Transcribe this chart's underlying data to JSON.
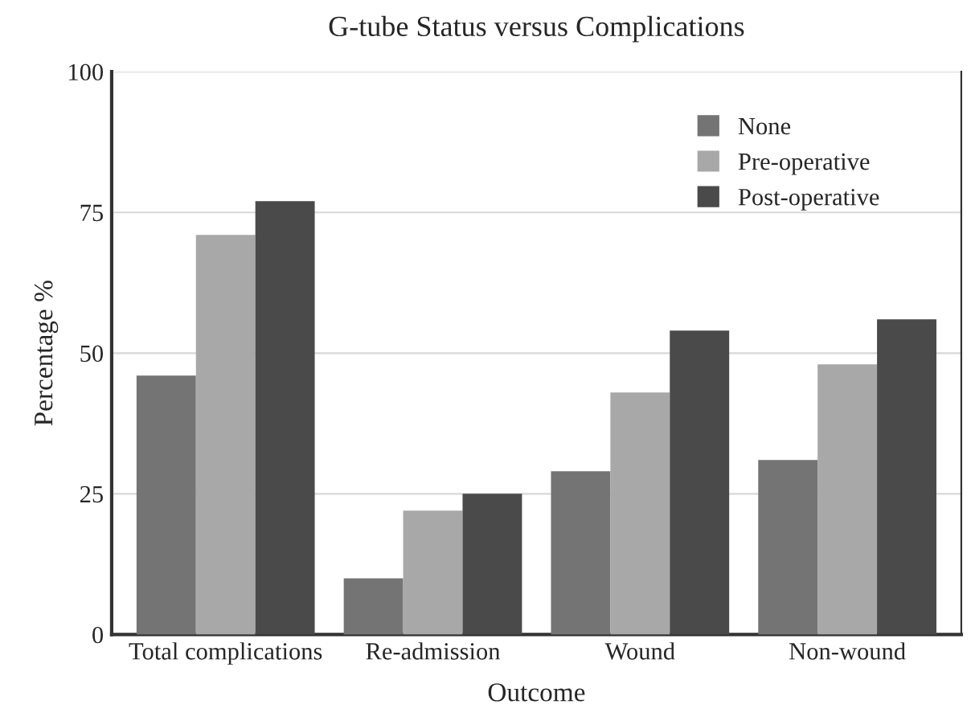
{
  "chart_data": {
    "type": "bar",
    "title": "G-tube Status versus Complications",
    "xlabel": "Outcome",
    "ylabel": "Percentage %",
    "categories": [
      "Total complications",
      "Re-admission",
      "Wound",
      "Non-wound"
    ],
    "series": [
      {
        "name": "None",
        "color": "#747474",
        "values": [
          46,
          10,
          29,
          31
        ]
      },
      {
        "name": "Pre-operative",
        "color": "#a8a8a8",
        "values": [
          71,
          22,
          43,
          48
        ]
      },
      {
        "name": "Post-operative",
        "color": "#4a4a4a",
        "values": [
          77,
          25,
          54,
          56
        ]
      }
    ],
    "ylim": [
      0,
      100
    ],
    "yticks": [
      0,
      25,
      50,
      75,
      100
    ],
    "grid": "y",
    "legend": "top right"
  }
}
